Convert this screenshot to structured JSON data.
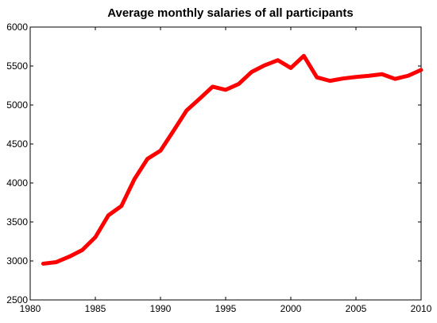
{
  "chart_data": {
    "type": "line",
    "title": "Average monthly salaries of all participants",
    "xlabel": "",
    "ylabel": "",
    "xlim": [
      1980,
      2010
    ],
    "ylim": [
      2500,
      6000
    ],
    "xticks": [
      1980,
      1985,
      1990,
      1995,
      2000,
      2005,
      2010
    ],
    "yticks": [
      2500,
      3000,
      3500,
      4000,
      4500,
      5000,
      5500,
      6000
    ],
    "grid": false,
    "legend": "none",
    "series": [
      {
        "color": "#ff0000",
        "x": [
          1981,
          1982,
          1983,
          1984,
          1985,
          1986,
          1987,
          1988,
          1989,
          1990,
          1991,
          1992,
          1993,
          1994,
          1995,
          1996,
          1997,
          1998,
          1999,
          2000,
          2001,
          2002,
          2003,
          2004,
          2005,
          2006,
          2007,
          2008,
          2009,
          2010
        ],
        "y": [
          2965,
          2985,
          3055,
          3140,
          3305,
          3585,
          3705,
          4050,
          4310,
          4415,
          4670,
          4930,
          5080,
          5235,
          5195,
          5270,
          5425,
          5510,
          5575,
          5475,
          5630,
          5355,
          5310,
          5340,
          5360,
          5375,
          5395,
          5335,
          5375,
          5450
        ]
      }
    ]
  }
}
